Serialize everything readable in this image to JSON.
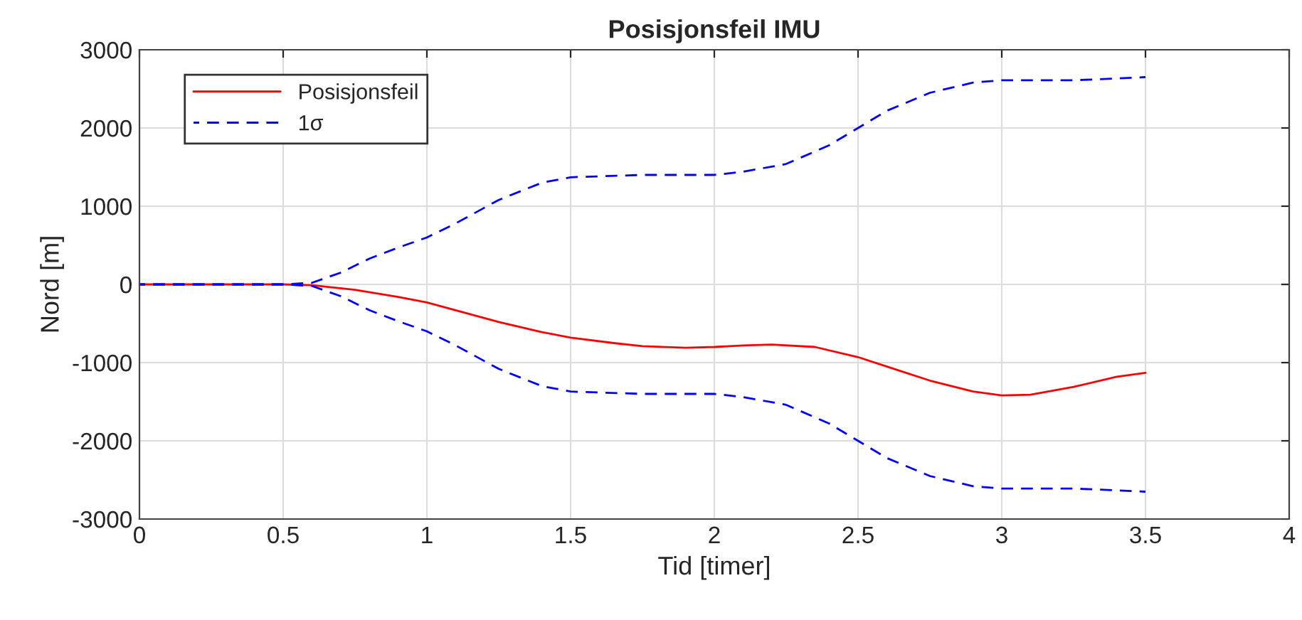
{
  "chart_data": {
    "type": "line",
    "title": "Posisjonsfeil IMU",
    "xlabel": "Tid [timer]",
    "ylabel": "Nord [m]",
    "xlim": [
      0,
      4
    ],
    "xticks": [
      0,
      0.5,
      1,
      1.5,
      2,
      2.5,
      3,
      3.5,
      4
    ],
    "ylim": [
      -3000,
      3000
    ],
    "yticks": [
      -3000,
      -2000,
      -1000,
      0,
      1000,
      2000,
      3000
    ],
    "grid": true,
    "legend": "top left",
    "series": [
      {
        "name": "Posisjonsfeil",
        "color": "#ff0000",
        "line_style": "solid",
        "x": [
          0,
          0.25,
          0.5,
          0.6,
          0.75,
          0.9,
          1.0,
          1.1,
          1.25,
          1.4,
          1.5,
          1.65,
          1.75,
          1.9,
          2.0,
          2.1,
          2.2,
          2.35,
          2.5,
          2.65,
          2.75,
          2.9,
          3.0,
          3.1,
          3.25,
          3.4,
          3.5
        ],
        "values": [
          0,
          0,
          0,
          -10,
          -70,
          -160,
          -230,
          -330,
          -480,
          -610,
          -680,
          -750,
          -790,
          -810,
          -800,
          -780,
          -770,
          -800,
          -930,
          -1110,
          -1230,
          -1370,
          -1420,
          -1410,
          -1310,
          -1180,
          -1130
        ]
      },
      {
        "name": "1σ",
        "color": "#0000ff",
        "line_style": "dashed",
        "x": [
          0,
          0.25,
          0.5,
          0.6,
          0.7,
          0.8,
          0.9,
          1.0,
          1.1,
          1.25,
          1.4,
          1.5,
          1.75,
          2.0,
          2.1,
          2.25,
          2.4,
          2.5,
          2.6,
          2.75,
          2.9,
          3.0,
          3.25,
          3.5
        ],
        "values": [
          0,
          0,
          0,
          20,
          150,
          330,
          470,
          600,
          780,
          1080,
          1300,
          1370,
          1400,
          1400,
          1440,
          1540,
          1780,
          2000,
          2220,
          2450,
          2580,
          2610,
          2610,
          2650
        ]
      },
      {
        "color": "#0000ff",
        "line_style": "dashed",
        "x": [
          0,
          0.25,
          0.5,
          0.6,
          0.7,
          0.8,
          0.9,
          1.0,
          1.1,
          1.25,
          1.4,
          1.5,
          1.75,
          2.0,
          2.1,
          2.25,
          2.4,
          2.5,
          2.6,
          2.75,
          2.9,
          3.0,
          3.25,
          3.5
        ],
        "values": [
          0,
          0,
          0,
          -20,
          -150,
          -330,
          -470,
          -600,
          -780,
          -1080,
          -1300,
          -1370,
          -1400,
          -1400,
          -1440,
          -1540,
          -1780,
          -2000,
          -2220,
          -2450,
          -2580,
          -2610,
          -2610,
          -2650
        ]
      }
    ]
  }
}
